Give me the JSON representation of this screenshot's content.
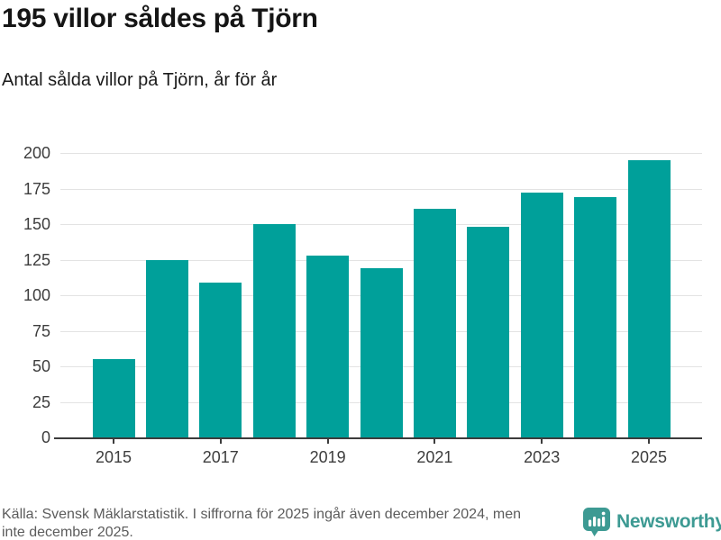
{
  "header": {
    "title": "195 villor såldes på Tjörn",
    "subtitle": "Antal sålda villor på Tjörn, år för år"
  },
  "chart_data": {
    "type": "bar",
    "categories": [
      "2015",
      "2016",
      "2017",
      "2018",
      "2019",
      "2020",
      "2021",
      "2022",
      "2023",
      "2024",
      "2025"
    ],
    "values": [
      55,
      125,
      109,
      150,
      128,
      119,
      161,
      148,
      172,
      169,
      195
    ],
    "title": "195 villor såldes på Tjörn",
    "subtitle": "Antal sålda villor på Tjörn, år för år",
    "xlabel": "",
    "ylabel": "",
    "ylim": [
      0,
      200
    ],
    "yticks": [
      0,
      25,
      50,
      75,
      100,
      125,
      150,
      175,
      200
    ],
    "xtick_labeled_years": [
      "2015",
      "2017",
      "2019",
      "2021",
      "2023",
      "2025"
    ],
    "grid": true,
    "legend": "none",
    "bar_color": "#00a09a"
  },
  "footer": {
    "source_line1": "Källa: Svensk Mäklarstatistik. I siffrorna för 2025 ingår även december 2024, men",
    "source_line2": "inte december 2025.",
    "brand": "Newsworthy",
    "brand_color": "#3d9a93"
  }
}
